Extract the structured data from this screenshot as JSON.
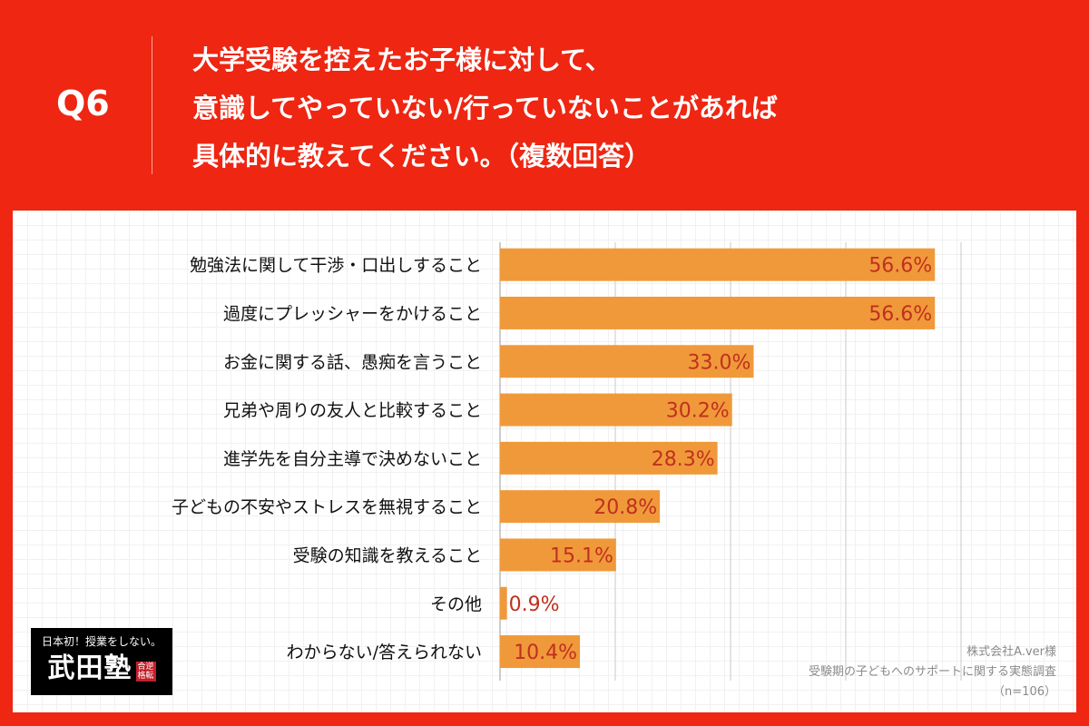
{
  "header": {
    "q": "Q6",
    "title_lines": [
      "大学受験を控えたお子様に対して、",
      "意識してやっていない/行っていないことがあれば",
      "具体的に教えてください。（複数回答）"
    ]
  },
  "logo": {
    "tagline": "日本初！授業をしない。",
    "name": "武田塾",
    "seal": "合逆格転"
  },
  "note": {
    "line1": "株式会社A.ver様",
    "line2": "受験期の子どもへのサポートに関する実態調査",
    "line3": "（n=106）"
  },
  "colors": {
    "bar": "#f0993a",
    "label": "#c0301f",
    "background": "#ee2612"
  },
  "chart_data": {
    "type": "bar",
    "orientation": "horizontal",
    "xlim": [
      0,
      60
    ],
    "grid": true,
    "gridlines": [
      0,
      15,
      30,
      45,
      60
    ],
    "categories": [
      "勉強法に関して干渉・口出しすること",
      "過度にプレッシャーをかけること",
      "お金に関する話、愚痴を言うこと",
      "兄弟や周りの友人と比較すること",
      "進学先を自分主導で決めないこと",
      "子どもの不安やストレスを無視すること",
      "受験の知識を教えること",
      "その他",
      "わからない/答えられない"
    ],
    "values": [
      56.6,
      56.6,
      33.0,
      30.2,
      28.3,
      20.8,
      15.1,
      0.9,
      10.4
    ],
    "labels": [
      "56.6%",
      "56.6%",
      "33.0%",
      "30.2%",
      "28.3%",
      "20.8%",
      "15.1%",
      "0.9%",
      "10.4%"
    ]
  }
}
